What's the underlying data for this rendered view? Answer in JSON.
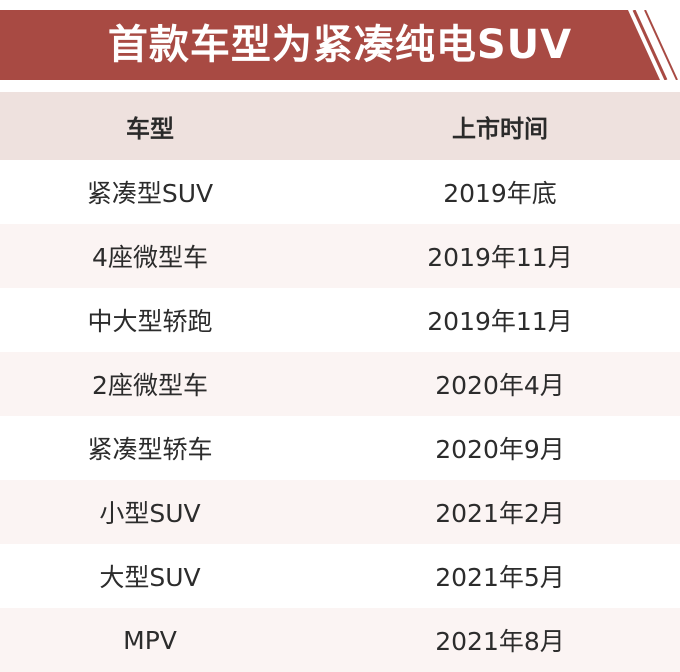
{
  "title": "首款车型为紧凑纯电SUV",
  "colors": {
    "banner": "#a84a43",
    "header_bg": "#eee1de",
    "row_alt_bg": "#fbf4f3"
  },
  "headers": {
    "model": "车型",
    "launch": "上市时间"
  },
  "rows": [
    {
      "model": "紧凑型SUV",
      "launch": "2019年底"
    },
    {
      "model": "4座微型车",
      "launch": "2019年11月"
    },
    {
      "model": "中大型轿跑",
      "launch": "2019年11月"
    },
    {
      "model": "2座微型车",
      "launch": "2020年4月"
    },
    {
      "model": "紧凑型轿车",
      "launch": "2020年9月"
    },
    {
      "model": "小型SUV",
      "launch": "2021年2月"
    },
    {
      "model": "大型SUV",
      "launch": "2021年5月"
    },
    {
      "model": "MPV",
      "launch": "2021年8月"
    }
  ]
}
